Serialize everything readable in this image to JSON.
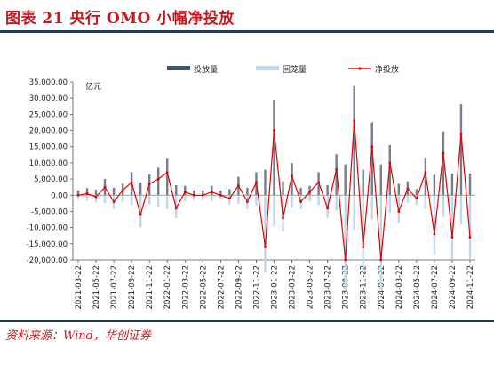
{
  "header": {
    "title": "图表 21   央行 OMO 小幅净投放"
  },
  "footer": {
    "source": "资料来源：Wind，华创证券"
  },
  "chart_data": {
    "type": "bar",
    "unit_label": "亿元",
    "ylim": [
      -20000,
      35000
    ],
    "y_ticks": [
      35000,
      30000,
      25000,
      20000,
      15000,
      10000,
      5000,
      0,
      -5000,
      -10000,
      -15000,
      -20000
    ],
    "y_tick_labels": [
      "35,000.00",
      "30,000.00",
      "25,000.00",
      "20,000.00",
      "15,000.00",
      "10,000.00",
      "5,000.00",
      "0.00",
      "-5,000.00",
      "-10,000.00",
      "-15,000.00",
      "-20,000.00"
    ],
    "x_tick_labels": [
      "2021-03-22",
      "2021-05-22",
      "2021-07-22",
      "2021-09-22",
      "2021-11-22",
      "2022-01-22",
      "2022-03-22",
      "2022-05-22",
      "2022-07-22",
      "2022-09-22",
      "2022-11-22",
      "2023-01-22",
      "2023-03-22",
      "2023-05-22",
      "2023-07-22",
      "2023-09-22",
      "2023-11-22",
      "2024-01-22",
      "2024-03-22",
      "2024-05-22",
      "2024-07-22",
      "2024-09-22",
      "2024-11-22"
    ],
    "legend": [
      "投放量",
      "回笼量",
      "净投放"
    ],
    "legend_placement": "top",
    "colors": {
      "injection": "#44546a",
      "withdrawal": "#bdd7ee",
      "net": "#e00000"
    },
    "net_series_monthly": [
      {
        "x": "2021-03-22",
        "y": 0
      },
      {
        "x": "2021-04-22",
        "y": 500
      },
      {
        "x": "2021-05-22",
        "y": -500
      },
      {
        "x": "2021-06-22",
        "y": 2500
      },
      {
        "x": "2021-07-22",
        "y": -2000
      },
      {
        "x": "2021-08-22",
        "y": 1500
      },
      {
        "x": "2021-09-22",
        "y": 4000
      },
      {
        "x": "2021-10-22",
        "y": -6000
      },
      {
        "x": "2021-11-22",
        "y": 3500
      },
      {
        "x": "2021-12-22",
        "y": 5000
      },
      {
        "x": "2022-01-22",
        "y": 7000
      },
      {
        "x": "2022-02-22",
        "y": -4000
      },
      {
        "x": "2022-03-22",
        "y": 1000
      },
      {
        "x": "2022-04-22",
        "y": 0
      },
      {
        "x": "2022-05-22",
        "y": 0
      },
      {
        "x": "2022-06-22",
        "y": 1000
      },
      {
        "x": "2022-07-22",
        "y": 0
      },
      {
        "x": "2022-08-22",
        "y": -1000
      },
      {
        "x": "2022-09-22",
        "y": 3000
      },
      {
        "x": "2022-10-22",
        "y": -2000
      },
      {
        "x": "2022-11-22",
        "y": 4000
      },
      {
        "x": "2022-12-22",
        "y": -16000
      },
      {
        "x": "2023-01-22",
        "y": 20000
      },
      {
        "x": "2023-02-22",
        "y": -7000
      },
      {
        "x": "2023-03-22",
        "y": 6000
      },
      {
        "x": "2023-04-22",
        "y": -2000
      },
      {
        "x": "2023-05-22",
        "y": 1000
      },
      {
        "x": "2023-06-22",
        "y": 4000
      },
      {
        "x": "2023-07-22",
        "y": -4000
      },
      {
        "x": "2023-08-22",
        "y": 8000
      },
      {
        "x": "2023-09-22",
        "y": -20000
      },
      {
        "x": "2023-10-22",
        "y": 23000
      },
      {
        "x": "2023-11-22",
        "y": -16000
      },
      {
        "x": "2023-12-22",
        "y": 15000
      },
      {
        "x": "2024-01-22",
        "y": -20000
      },
      {
        "x": "2024-02-22",
        "y": 10000
      },
      {
        "x": "2024-03-22",
        "y": -5000
      },
      {
        "x": "2024-04-22",
        "y": 2000
      },
      {
        "x": "2024-05-22",
        "y": -1000
      },
      {
        "x": "2024-06-22",
        "y": 7000
      },
      {
        "x": "2024-07-22",
        "y": -12000
      },
      {
        "x": "2024-08-22",
        "y": 13000
      },
      {
        "x": "2024-09-22",
        "y": -13000
      },
      {
        "x": "2024-10-22",
        "y": 19000
      },
      {
        "x": "2024-11-22",
        "y": -13000
      }
    ]
  }
}
